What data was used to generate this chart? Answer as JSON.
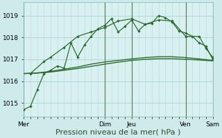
{
  "bg_color": "#ceeaea",
  "plot_bg": "#d8f0f0",
  "grid_color": "#b0d8d8",
  "line_color": "#2d6a2d",
  "ylim": [
    1014.4,
    1019.6
  ],
  "yticks": [
    1015,
    1016,
    1017,
    1018,
    1019
  ],
  "xlabel": "Pression niveau de la mer( hPa )",
  "xlabel_fontsize": 8,
  "tick_fontsize": 6.5,
  "xlim_days": 7,
  "day_ticks_x": [
    0,
    3,
    4,
    6,
    7
  ],
  "day_labels": [
    "Mer",
    "Dim",
    "Jeu",
    "Ven",
    "Sam"
  ],
  "vert_lines_x": [
    0,
    3,
    4,
    6,
    7
  ],
  "s1_x": [
    0.0,
    0.25,
    0.5,
    0.75,
    1.0,
    1.25,
    1.5,
    1.75,
    2.0,
    2.25,
    2.5,
    2.75,
    3.0,
    3.25,
    3.5,
    3.75,
    4.0,
    4.25,
    4.5,
    4.75,
    5.0,
    5.25,
    5.5,
    5.75,
    6.0,
    6.25,
    6.5,
    6.75,
    7.0
  ],
  "s1_y": [
    1014.7,
    1014.85,
    1015.6,
    1016.35,
    1016.5,
    1016.7,
    1016.6,
    1017.75,
    1017.1,
    1017.65,
    1018.05,
    1018.4,
    1018.55,
    1018.85,
    1018.25,
    1018.5,
    1018.8,
    1018.3,
    1018.6,
    1018.65,
    1019.0,
    1018.9,
    1018.7,
    1018.3,
    1018.2,
    1018.05,
    1017.75,
    1017.6,
    1017.0
  ],
  "s2_x": [
    0.0,
    0.5,
    1.0,
    1.5,
    2.0,
    2.5,
    3.0,
    3.5,
    4.0,
    4.5,
    5.0,
    5.5,
    6.0,
    6.5,
    7.0
  ],
  "s2_y": [
    1016.35,
    1016.38,
    1016.45,
    1016.55,
    1016.65,
    1016.78,
    1016.88,
    1016.95,
    1017.02,
    1017.08,
    1017.12,
    1017.12,
    1017.08,
    1017.02,
    1016.95
  ],
  "s3_x": [
    0.0,
    0.5,
    1.0,
    1.5,
    2.0,
    2.5,
    3.0,
    3.5,
    4.0,
    4.5,
    5.0,
    5.5,
    6.0,
    6.5,
    7.0
  ],
  "s3_y": [
    1016.35,
    1016.37,
    1016.42,
    1016.5,
    1016.58,
    1016.68,
    1016.78,
    1016.87,
    1016.95,
    1017.0,
    1017.03,
    1017.03,
    1017.0,
    1016.97,
    1016.93
  ],
  "s4_x": [
    0.25,
    0.75,
    1.0,
    1.5,
    2.0,
    2.5,
    3.0,
    3.5,
    4.0,
    4.5,
    5.0,
    5.5,
    6.0,
    6.5,
    6.75,
    7.0
  ],
  "s4_y": [
    1016.35,
    1016.9,
    1017.1,
    1017.55,
    1018.05,
    1018.25,
    1018.45,
    1018.75,
    1018.85,
    1018.6,
    1018.8,
    1018.75,
    1018.05,
    1018.05,
    1017.5,
    1017.1
  ]
}
